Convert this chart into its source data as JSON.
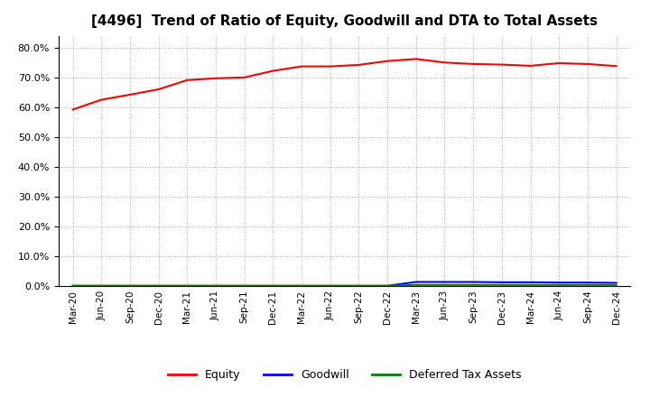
{
  "title": "[4496]  Trend of Ratio of Equity, Goodwill and DTA to Total Assets",
  "title_fontsize": 11,
  "ylim": [
    0.0,
    0.84
  ],
  "ytick_values": [
    0.0,
    0.1,
    0.2,
    0.3,
    0.4,
    0.5,
    0.6,
    0.7,
    0.8
  ],
  "x_labels": [
    "Mar-20",
    "Jun-20",
    "Sep-20",
    "Dec-20",
    "Mar-21",
    "Jun-21",
    "Sep-21",
    "Dec-21",
    "Mar-22",
    "Jun-22",
    "Sep-22",
    "Dec-22",
    "Mar-23",
    "Jun-23",
    "Sep-23",
    "Dec-23",
    "Mar-24",
    "Jun-24",
    "Sep-24",
    "Dec-24"
  ],
  "equity": [
    0.592,
    0.625,
    0.642,
    0.66,
    0.691,
    0.697,
    0.7,
    0.722,
    0.737,
    0.737,
    0.742,
    0.755,
    0.762,
    0.75,
    0.745,
    0.743,
    0.739,
    0.748,
    0.745,
    0.738
  ],
  "goodwill": [
    0.0,
    0.0,
    0.0,
    0.0,
    0.0,
    0.0,
    0.0,
    0.0,
    0.0,
    0.0,
    0.0,
    0.0,
    0.013,
    0.013,
    0.013,
    0.012,
    0.012,
    0.011,
    0.011,
    0.01
  ],
  "dta": [
    0.0,
    0.0,
    0.0,
    0.0,
    0.0,
    0.0,
    0.0,
    0.0,
    0.0,
    0.0,
    0.0,
    0.0,
    0.003,
    0.003,
    0.003,
    0.003,
    0.003,
    0.003,
    0.003,
    0.003
  ],
  "equity_color": "#ff0000",
  "goodwill_color": "#0000ff",
  "dta_color": "#008000",
  "line_width": 1.5,
  "background_color": "#ffffff",
  "grid_color": "#aaaaaa",
  "legend_labels": [
    "Equity",
    "Goodwill",
    "Deferred Tax Assets"
  ]
}
